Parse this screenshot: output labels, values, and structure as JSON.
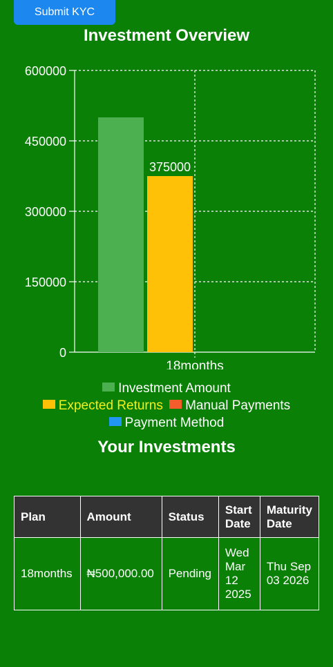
{
  "kyc": {
    "label": "Submit KYC"
  },
  "overview": {
    "title": "Investment Overview"
  },
  "chart_data": {
    "type": "bar",
    "categories": [
      "18months"
    ],
    "series": [
      {
        "name": "Investment Amount",
        "values": [
          500000
        ],
        "color": "#4caf50"
      },
      {
        "name": "Expected Returns",
        "values": [
          375000
        ],
        "color": "#ffc107"
      },
      {
        "name": "Manual Payments",
        "values": [
          0
        ],
        "color": "#f25d2b"
      },
      {
        "name": "Payment Method",
        "values": [
          0
        ],
        "color": "#2196f3"
      }
    ],
    "data_labels": [
      {
        "series": 1,
        "index": 0,
        "text": "375000"
      }
    ],
    "yticks": [
      "0",
      "150000",
      "300000",
      "450000",
      "600000"
    ],
    "ylim": [
      0,
      600000
    ],
    "grid": true,
    "legend_position": "bottom"
  },
  "legend": [
    {
      "label": "Investment Amount",
      "color": "#4caf50",
      "text_color": "#ffffff"
    },
    {
      "label": "Expected Returns",
      "color": "#ffc107",
      "text_color": "#f5ef1a"
    },
    {
      "label": "Manual Payments",
      "color": "#f25d2b",
      "text_color": "#ffffff"
    },
    {
      "label": "Payment Method",
      "color": "#2196f3",
      "text_color": "#ffffff"
    }
  ],
  "investments": {
    "title": "Your Investments",
    "headers": [
      "Plan",
      "Amount",
      "Status",
      "Start Date",
      "Maturity Date"
    ],
    "rows": [
      [
        "18months",
        "₦500,000.00",
        "Pending",
        "Wed Mar 12 2025",
        "Thu Sep 03 2026"
      ]
    ]
  }
}
